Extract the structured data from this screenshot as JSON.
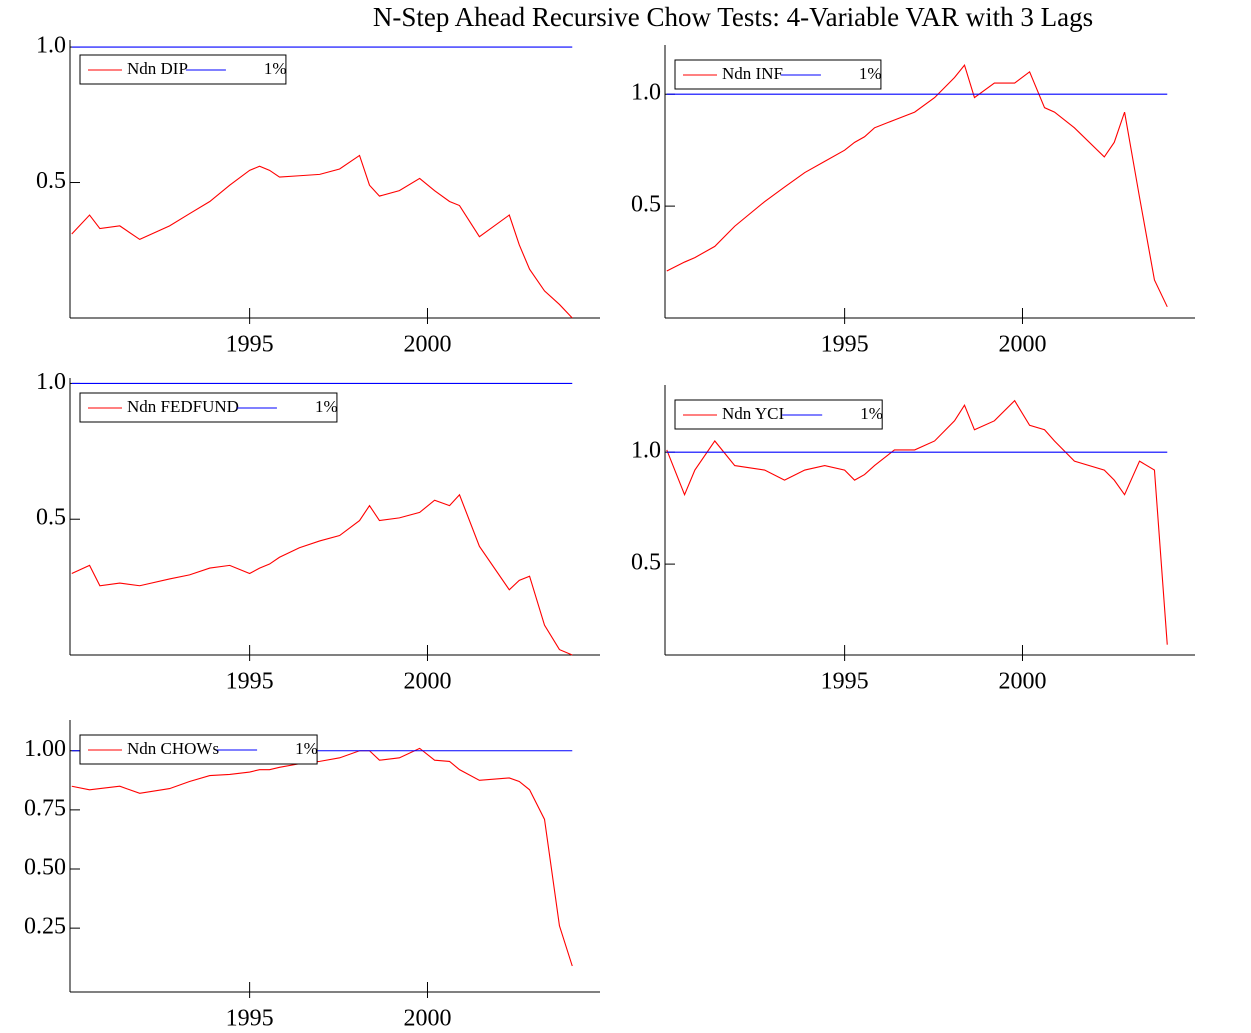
{
  "title": "N-Step Ahead Recursive Chow Tests: 4-Variable VAR with 3 Lags",
  "chart_data": [
    {
      "type": "line",
      "x": [
        1990.0,
        1990.5,
        1990.79,
        1991.35,
        1991.91,
        1992.75,
        1993.31,
        1993.88,
        1994.44,
        1995.0,
        1995.28,
        1995.56,
        1995.84,
        1996.4,
        1996.97,
        1997.53,
        1998.09,
        1998.37,
        1998.65,
        1999.21,
        1999.78,
        2000.2,
        2000.62,
        2000.9,
        2001.46,
        2002.3,
        2002.58,
        2002.87,
        2003.29,
        2003.71,
        2004.07
      ],
      "series": [
        {
          "name": "Ndn DIP",
          "color": "#ff0000",
          "values": [
            0.31,
            0.38,
            0.33,
            0.34,
            0.29,
            0.34,
            0.385,
            0.43,
            0.49,
            0.545,
            0.56,
            0.545,
            0.52,
            0.525,
            0.53,
            0.55,
            0.6,
            0.49,
            0.45,
            0.47,
            0.515,
            0.47,
            0.43,
            0.415,
            0.3,
            0.38,
            0.27,
            0.18,
            0.1,
            0.05,
            0.0
          ]
        },
        {
          "name": "1%",
          "color": "#0000ff",
          "x": [
            1990.0,
            2004.07
          ],
          "values": [
            1,
            1
          ]
        }
      ],
      "xlim": [
        1989.95,
        2004.85
      ],
      "xticks": [
        1995,
        2000
      ],
      "ylim": [
        0,
        1.026
      ],
      "yticks": [
        0.5,
        {
          "value": 1,
          "label": "1.0"
        }
      ]
    },
    {
      "type": "line",
      "x": [
        1990.0,
        1990.5,
        1990.79,
        1991.35,
        1991.91,
        1992.75,
        1993.31,
        1993.88,
        1994.44,
        1995.0,
        1995.28,
        1995.56,
        1995.84,
        1996.4,
        1996.97,
        1997.53,
        1998.09,
        1998.37,
        1998.65,
        1999.21,
        1999.78,
        2000.2,
        2000.62,
        2000.9,
        2001.46,
        2002.3,
        2002.58,
        2002.87,
        2003.29,
        2003.71,
        2004.07
      ],
      "series": [
        {
          "name": "Ndn INF",
          "color": "#ff0000",
          "values": [
            0.21,
            0.25,
            0.27,
            0.32,
            0.41,
            0.52,
            0.585,
            0.65,
            0.7,
            0.75,
            0.785,
            0.81,
            0.85,
            0.885,
            0.92,
            0.985,
            1.075,
            1.13,
            0.985,
            1.05,
            1.05,
            1.1,
            0.94,
            0.92,
            0.85,
            0.72,
            0.785,
            0.92,
            0.54,
            0.17,
            0.05
          ]
        },
        {
          "name": "1%",
          "color": "#0000ff",
          "x": [
            1990.0,
            2004.07
          ],
          "values": [
            1,
            1
          ]
        }
      ],
      "xlim": [
        1989.95,
        2004.85
      ],
      "xticks": [
        1995,
        2000
      ],
      "ylim": [
        0,
        1.22
      ],
      "yticks": [
        0.5,
        {
          "value": 1,
          "label": "1.0"
        }
      ]
    },
    {
      "type": "line",
      "x": [
        1990.0,
        1990.5,
        1990.79,
        1991.35,
        1991.91,
        1992.75,
        1993.31,
        1993.88,
        1994.44,
        1995.0,
        1995.28,
        1995.56,
        1995.84,
        1996.4,
        1996.97,
        1997.53,
        1998.09,
        1998.37,
        1998.65,
        1999.21,
        1999.78,
        2000.2,
        2000.62,
        2000.9,
        2001.46,
        2002.3,
        2002.58,
        2002.87,
        2003.29,
        2003.71,
        2004.07
      ],
      "series": [
        {
          "name": "Ndn FEDFUND",
          "color": "#ff0000",
          "values": [
            0.3,
            0.33,
            0.255,
            0.265,
            0.255,
            0.28,
            0.295,
            0.32,
            0.33,
            0.3,
            0.32,
            0.335,
            0.36,
            0.395,
            0.42,
            0.44,
            0.495,
            0.55,
            0.495,
            0.505,
            0.525,
            0.57,
            0.55,
            0.59,
            0.4,
            0.24,
            0.275,
            0.29,
            0.11,
            0.02,
            0.0
          ]
        },
        {
          "name": "1%",
          "color": "#0000ff",
          "x": [
            1990.0,
            2004.07
          ],
          "values": [
            1,
            1
          ]
        }
      ],
      "xlim": [
        1989.95,
        2004.85
      ],
      "xticks": [
        1995,
        2000
      ],
      "ylim": [
        0,
        1.02
      ],
      "yticks": [
        0.5,
        {
          "value": 1,
          "label": "1.0"
        }
      ]
    },
    {
      "type": "line",
      "x": [
        1990.0,
        1990.5,
        1990.79,
        1991.35,
        1991.91,
        1992.75,
        1993.31,
        1993.88,
        1994.44,
        1995.0,
        1995.28,
        1995.56,
        1995.84,
        1996.4,
        1996.97,
        1997.53,
        1998.09,
        1998.37,
        1998.65,
        1999.21,
        1999.78,
        2000.2,
        2000.62,
        2000.9,
        2001.46,
        2002.3,
        2002.58,
        2002.87,
        2003.29,
        2003.71,
        2004.07
      ],
      "series": [
        {
          "name": "Ndn YCI",
          "color": "#ff0000",
          "values": [
            1.01,
            0.81,
            0.92,
            1.05,
            0.94,
            0.92,
            0.875,
            0.92,
            0.94,
            0.92,
            0.875,
            0.9,
            0.94,
            1.01,
            1.01,
            1.05,
            1.14,
            1.21,
            1.1,
            1.14,
            1.23,
            1.12,
            1.1,
            1.05,
            0.96,
            0.92,
            0.875,
            0.81,
            0.96,
            0.92,
            0.14
          ]
        },
        {
          "name": "1%",
          "color": "#0000ff",
          "x": [
            1990.0,
            2004.07
          ],
          "values": [
            1,
            1
          ]
        }
      ],
      "xlim": [
        1989.95,
        2004.85
      ],
      "xticks": [
        1995,
        2000
      ],
      "ylim": [
        0.094,
        1.3
      ],
      "yticks": [
        0.5,
        {
          "value": 1,
          "label": "1.0"
        }
      ]
    },
    {
      "type": "line",
      "x": [
        1990.0,
        1990.5,
        1990.79,
        1991.35,
        1991.91,
        1992.75,
        1993.31,
        1993.88,
        1994.44,
        1995.0,
        1995.28,
        1995.56,
        1995.84,
        1996.4,
        1996.97,
        1997.53,
        1998.09,
        1998.37,
        1998.65,
        1999.21,
        1999.78,
        2000.2,
        2000.62,
        2000.9,
        2001.46,
        2002.3,
        2002.58,
        2002.87,
        2003.29,
        2003.71,
        2004.07
      ],
      "series": [
        {
          "name": "Ndn CHOWs",
          "color": "#ff0000",
          "values": [
            0.85,
            0.835,
            0.84,
            0.85,
            0.82,
            0.84,
            0.87,
            0.895,
            0.9,
            0.91,
            0.92,
            0.92,
            0.93,
            0.945,
            0.955,
            0.97,
            1.0,
            1.0,
            0.96,
            0.97,
            1.01,
            0.96,
            0.955,
            0.92,
            0.875,
            0.885,
            0.87,
            0.835,
            0.71,
            0.26,
            0.09
          ]
        },
        {
          "name": "1%",
          "color": "#0000ff",
          "x": [
            1990.0,
            2004.07
          ],
          "values": [
            1,
            1
          ]
        }
      ],
      "xlim": [
        1989.95,
        2004.85
      ],
      "xticks": [
        1995,
        2000
      ],
      "ylim": [
        -0.02,
        1.13
      ],
      "yticks": [
        {
          "value": 0.25,
          "label": "0.25"
        },
        {
          "value": 0.5,
          "label": "0.50"
        },
        0.75,
        {
          "value": 1,
          "label": "1.00"
        }
      ]
    }
  ]
}
